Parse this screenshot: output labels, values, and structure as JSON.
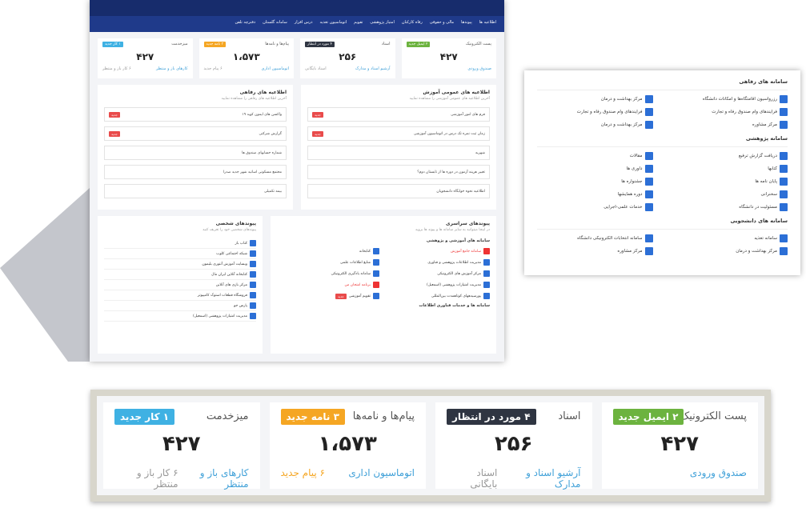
{
  "nav": [
    "اطلاعیه ها",
    "پیوندها",
    "مالی و حقوقی",
    "رفاه کارکنان",
    "امتیاز پژوهشی",
    "تقویم",
    "اتوماسیون تغذیه",
    "درس افزار",
    "سامانه گلستان",
    "دفترچه تلفن"
  ],
  "cards": [
    {
      "title": "پست الکترونیک",
      "badge": "۲ ایمیل جدید",
      "badge_color": "#6cb33f",
      "value": "۴۲۷",
      "links": [
        "صندوق ورودی"
      ]
    },
    {
      "title": "اسناد",
      "badge": "۴ مورد در انتظار",
      "badge_color": "#2f3542",
      "value": "۲۵۶",
      "links": [
        "آرشیو اسناد و مدارک",
        "اسناد بایگانی"
      ]
    },
    {
      "title": "پیام‌ها و نامه‌ها",
      "badge": "۳ نامه جدید",
      "badge_color": "#f5a623",
      "value": "۱،۵۷۳",
      "links": [
        "اتوماسیون اداری",
        "۶ پیام جدید"
      ]
    },
    {
      "title": "میزخدمت",
      "badge": "۱ کار جدید",
      "badge_color": "#3fb1e3",
      "value": "۴۲۷",
      "links": [
        "کارهای باز و منتظر",
        "۶ کار باز و منتظر"
      ]
    }
  ],
  "news": [
    {
      "title": "اطلاعیه های عمومی آموزش",
      "subtitle": "آخرین اطلاعیه های عمومی آموزشی را مشاهده نمایید",
      "items": [
        {
          "text": "فرم های امور آموزشی",
          "badge": "جدید"
        },
        {
          "text": "زمان ثبت نمره تک درس در اتوماسیون آموزشی",
          "badge": "جدید"
        },
        {
          "text": "شهریه"
        },
        {
          "text": "تغییر هزینه آزمون در دوره ها از تابستان دوم؟"
        },
        {
          "text": "اطلاعیه نحوه خوابگاه دانشجویان"
        }
      ]
    },
    {
      "title": "اطلاعیه های رفاهی",
      "subtitle": "آخرین اطلاعیه های رفاهی را مشاهده نمایید",
      "items": [
        {
          "text": "واکسن های ایمون کوید ۱۹",
          "badge": "جدید"
        },
        {
          "text": "گزارش شرکتی",
          "badge": "جدید"
        },
        {
          "text": "شماره حسابهای صندوق ها"
        },
        {
          "text": "مجتمع مسکونی اساتید شهر جدید صدرا"
        },
        {
          "text": "بیمه تکمیلی"
        }
      ]
    }
  ],
  "links_global": {
    "title": "پیوندهای سراسری",
    "subtitle": "در اینجا میتوانید به سایر سامانه ها و پیوند ها بروید",
    "sections": [
      {
        "title": "سامانه های آموزشی و پژوهشی",
        "items": [
          {
            "text": "سامانه جامع آموزش",
            "red": true
          },
          {
            "text": "کتابخانه"
          },
          {
            "text": "مدیریت اطلاعات پژوهشی و فناوری"
          },
          {
            "text": "منابع اطلاعات علمی"
          },
          {
            "text": "مرکز آموزش های الکترونیکی"
          },
          {
            "text": "سامانه یادگیری الکترونیکی"
          },
          {
            "text": "مدیریت امتیازات پژوهشی (اسمعیل)"
          },
          {
            "text": "برنامه امتحان من",
            "red": true
          },
          {
            "text": "پورسیدههای کوتاهمدت بین‌المللی"
          },
          {
            "text": "تقویم آموزشی",
            "badge": "جدید"
          }
        ]
      },
      {
        "title": "سامانه ها و خدمات فناوری اطلاعات",
        "items": []
      }
    ]
  },
  "links_personal": {
    "title": "پیوندهای شخصی",
    "subtitle": "پیوندهای شخصی خود را تعریف کنید",
    "items": [
      "کتاب باز",
      "شبکه اجتماعی کلوب",
      "وبسایت آموزش آنتوری بلیمون",
      "کتابخانه آنلاین ایران مال",
      "مرکز بازی های آنلاین",
      "فروشگاه قطعات استوک کامپیوتر",
      "پارس جو",
      "مدیریت امتیازات پژوهشی (اسمعیل)"
    ]
  },
  "panel": [
    {
      "title": "سامانه های رفاهی",
      "items": [
        "رزرواسیون اقامتگاه‌ها و امکانات دانشگاه",
        "مرکز بهداشت و درمان",
        "فرایندهای وام صندوق رفاه و تجارت",
        "فرایندهای وام صندوق رفاه و تجارت",
        "مرکز مشاوره",
        "مرکز بهداشت و درمان"
      ]
    },
    {
      "title": "سامانه پژوهشی",
      "items": [
        "دریافت گزارش ترفیع",
        "مقالات",
        "کتابها",
        "داوری ها",
        "پایان نامه ها",
        "جشنواره ها",
        "سخنرانی",
        "دوره همایشها",
        "مسئولیت در دانشگاه",
        "خدمات علمی-اجرایی"
      ]
    },
    {
      "title": "سامانه های دانشجویی",
      "items": [
        "سامانه تغذیه",
        "سامانه انتخابات الکترونیکی دانشگاه",
        "مرکز بهداشت و درمان",
        "مرکز مشاوره"
      ]
    }
  ]
}
